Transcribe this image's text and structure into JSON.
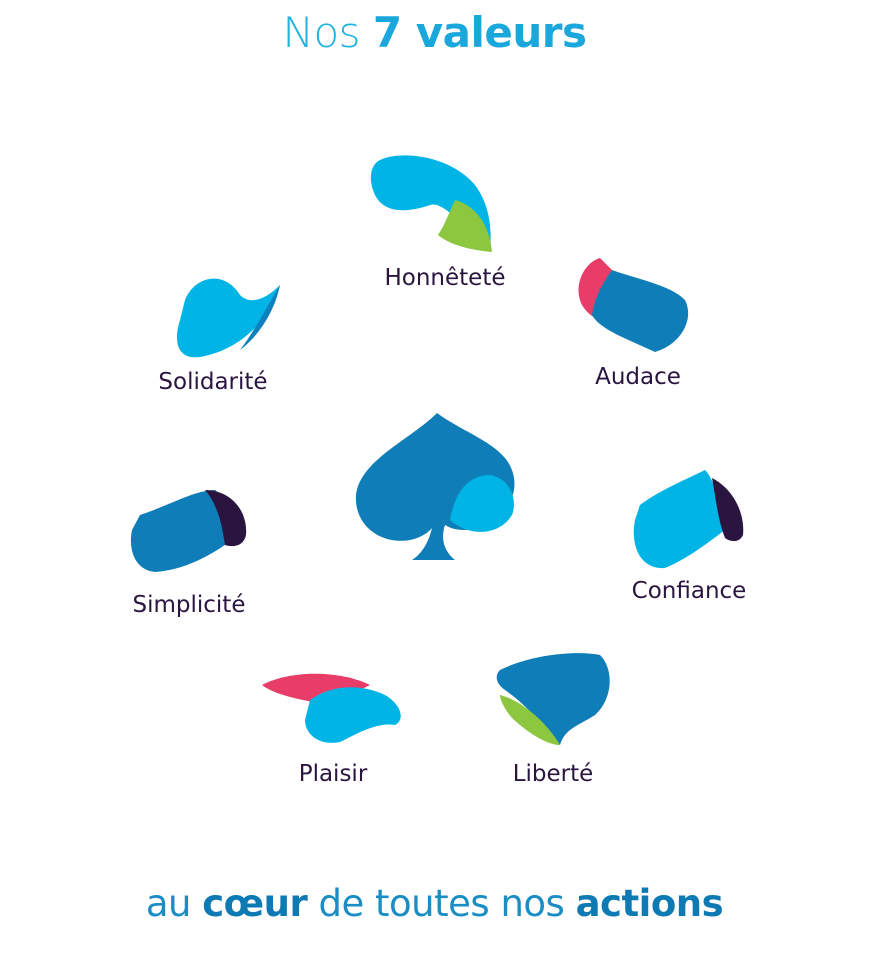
{
  "header": {
    "title_light": "Nos",
    "title_bold": "7 valeurs"
  },
  "values": [
    {
      "label": "Honnêteté"
    },
    {
      "label": "Solidarité"
    },
    {
      "label": "Audace"
    },
    {
      "label": "Simplicité"
    },
    {
      "label": "Confiance"
    },
    {
      "label": "Plaisir"
    },
    {
      "label": "Liberté"
    }
  ],
  "footer": {
    "part1": "au",
    "part2": "cœur",
    "part3": "de toutes nos",
    "part4": "actions"
  }
}
